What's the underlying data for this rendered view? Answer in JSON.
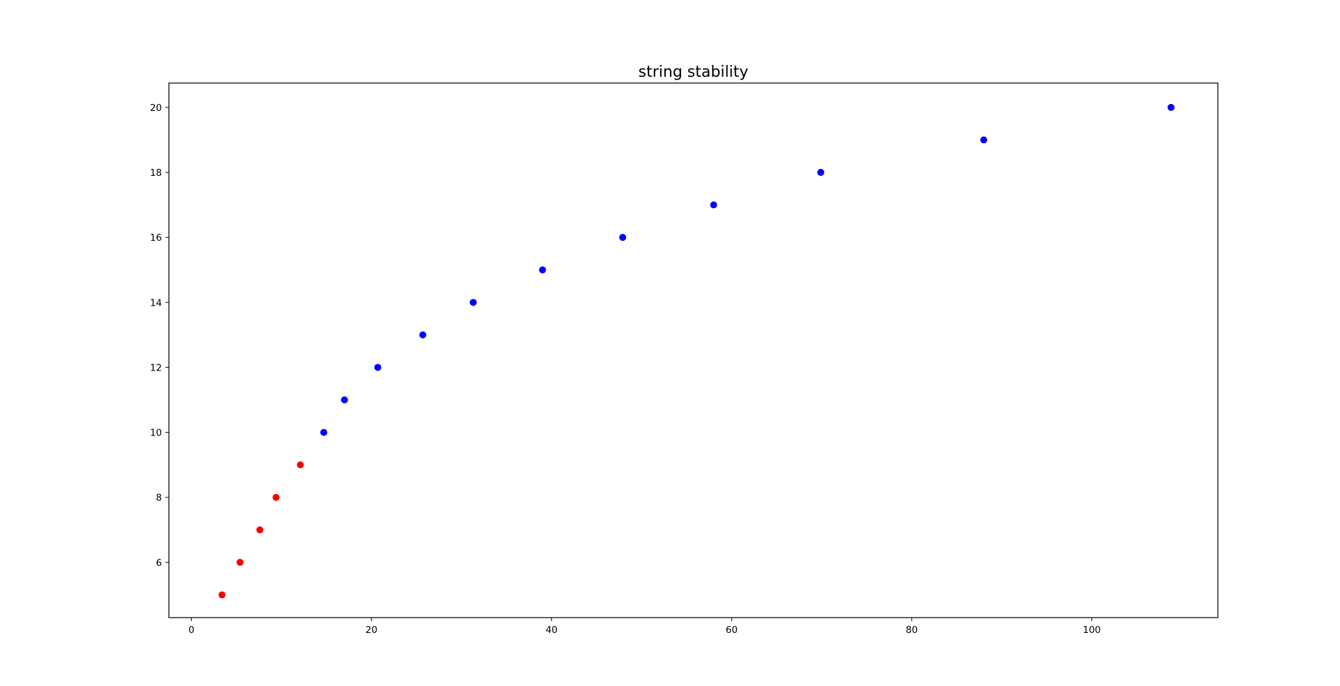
{
  "chart_data": {
    "type": "scatter",
    "title": "string stability",
    "xlabel": "",
    "ylabel": "",
    "xlim": [
      -2.5,
      114
    ],
    "ylim": [
      4.3,
      20.75
    ],
    "xticks": [
      0,
      20,
      40,
      60,
      80,
      100
    ],
    "yticks": [
      6,
      8,
      10,
      12,
      14,
      16,
      18,
      20
    ],
    "grid": false,
    "legend": "none",
    "colors": {
      "unstable": "#ff0000",
      "stable": "#0000ff"
    },
    "points": [
      {
        "x": 3.4,
        "y": 5,
        "color": "#ff0000"
      },
      {
        "x": 5.4,
        "y": 6,
        "color": "#ff0000"
      },
      {
        "x": 7.6,
        "y": 7,
        "color": "#ff0000"
      },
      {
        "x": 9.4,
        "y": 8,
        "color": "#ff0000"
      },
      {
        "x": 12.1,
        "y": 9,
        "color": "#ff0000"
      },
      {
        "x": 14.7,
        "y": 10,
        "color": "#0000ff"
      },
      {
        "x": 17.0,
        "y": 11,
        "color": "#0000ff"
      },
      {
        "x": 20.7,
        "y": 12,
        "color": "#0000ff"
      },
      {
        "x": 25.7,
        "y": 13,
        "color": "#0000ff"
      },
      {
        "x": 31.3,
        "y": 14,
        "color": "#0000ff"
      },
      {
        "x": 39.0,
        "y": 15,
        "color": "#0000ff"
      },
      {
        "x": 47.9,
        "y": 16,
        "color": "#0000ff"
      },
      {
        "x": 58.0,
        "y": 17,
        "color": "#0000ff"
      },
      {
        "x": 69.9,
        "y": 18,
        "color": "#0000ff"
      },
      {
        "x": 88.0,
        "y": 19,
        "color": "#0000ff"
      },
      {
        "x": 108.8,
        "y": 20,
        "color": "#0000ff"
      }
    ]
  }
}
